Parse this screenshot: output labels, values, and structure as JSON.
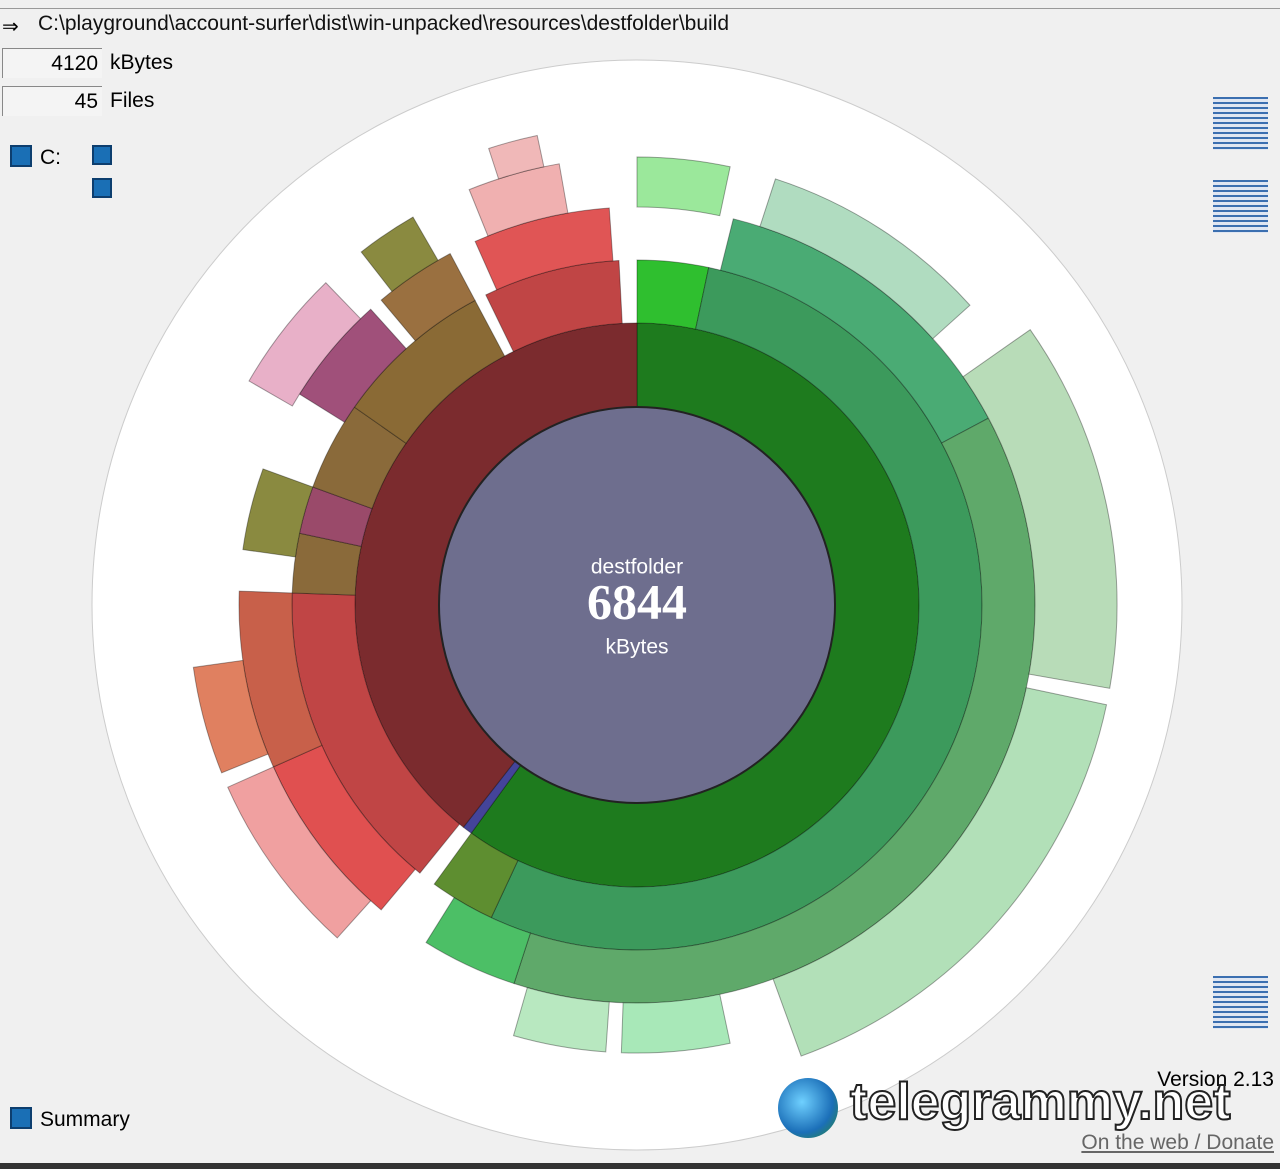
{
  "path": "C:\\playground\\account-surfer\\dist\\win-unpacked\\resources\\destfolder\\build",
  "stats": {
    "size": {
      "value": 4120,
      "unit": "kBytes"
    },
    "files": {
      "value": 45,
      "unit": "Files"
    }
  },
  "drive": "C:",
  "summary": "Summary",
  "center": {
    "name": "destfolder",
    "size": 6844,
    "unit": "kBytes"
  },
  "version": "Version 2.13",
  "link": "On the web / Donate",
  "watermark": "telegrammy.net"
}
